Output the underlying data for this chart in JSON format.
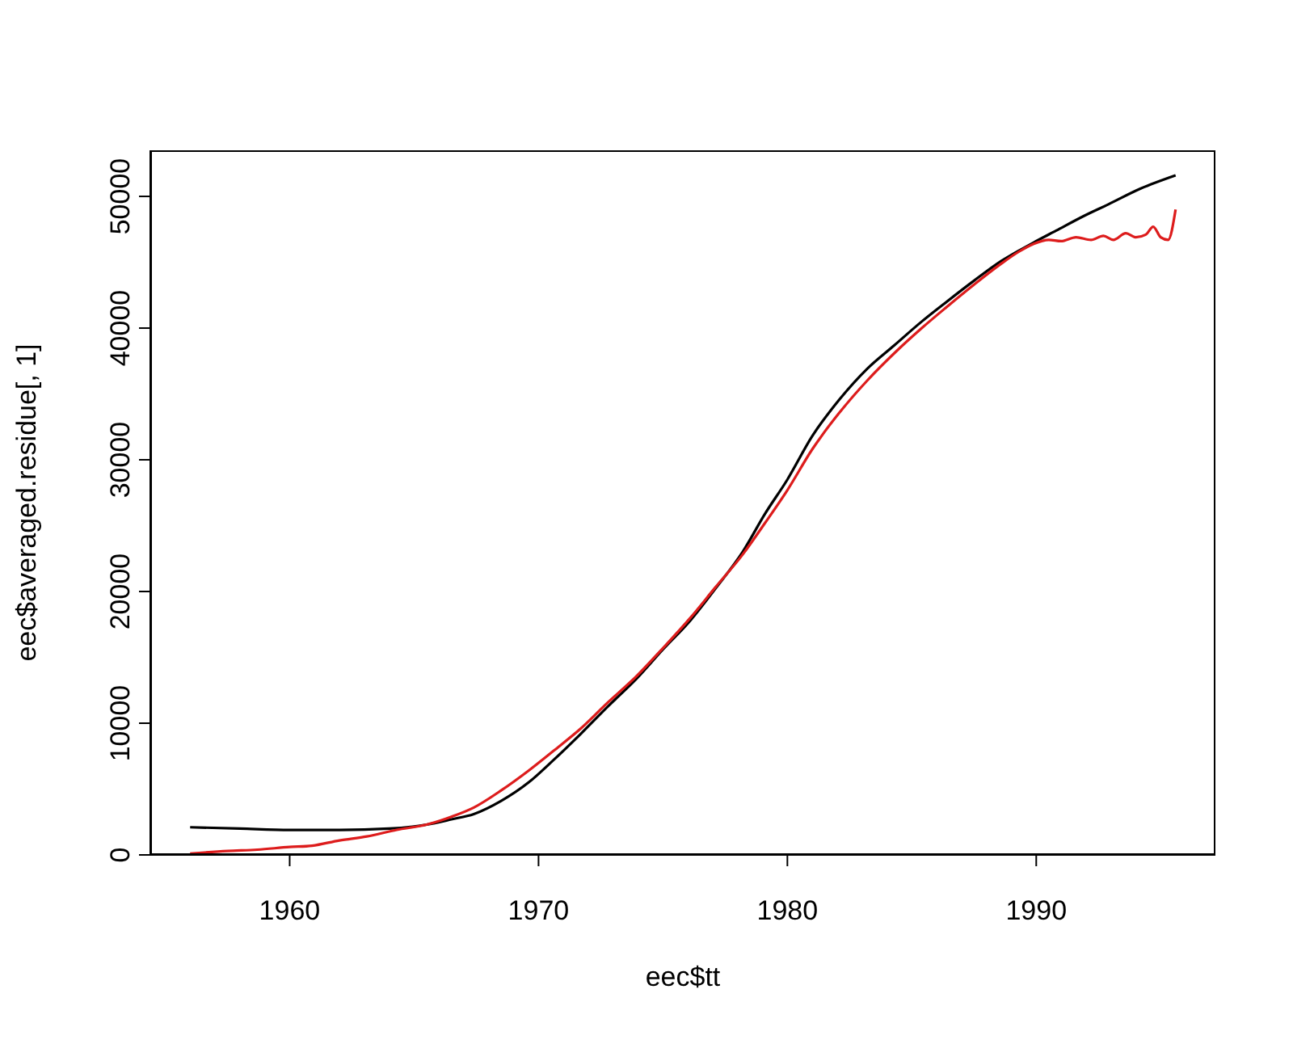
{
  "chart_data": {
    "type": "line",
    "xlabel": "eec$tt",
    "ylabel": "eec$averaged.residue[, 1]",
    "xlim": [
      1954.4,
      1997.2
    ],
    "xticks": [
      1960,
      1970,
      1980,
      1990
    ],
    "ylim": [
      0,
      53500
    ],
    "yticks": [
      0,
      10000,
      20000,
      30000,
      40000,
      50000
    ],
    "marker": "none",
    "line_style": "solid",
    "series": [
      {
        "color": "#000000",
        "x": [
          1956.0,
          1958.0,
          1960.0,
          1962.0,
          1964.0,
          1965.5,
          1966.5,
          1967.4,
          1968.5,
          1969.6,
          1970.6,
          1971.7,
          1972.8,
          1973.9,
          1975.0,
          1976.1,
          1977.1,
          1978.2,
          1979.1,
          1980.0,
          1981.0,
          1982.1,
          1983.2,
          1984.3,
          1985.4,
          1986.4,
          1987.5,
          1988.6,
          1989.9,
          1990.8,
          1991.9,
          1992.9,
          1994.2,
          1995.6
        ],
        "values": [
          2100,
          2000,
          1900,
          1900,
          2000,
          2300,
          2700,
          3100,
          4100,
          5500,
          7200,
          9200,
          11300,
          13300,
          15600,
          17800,
          20200,
          23000,
          25900,
          28500,
          31800,
          34600,
          36900,
          38700,
          40500,
          42000,
          43600,
          45100,
          46500,
          47400,
          48500,
          49400,
          50600,
          51600
        ]
      },
      {
        "color": "#dd1c1c",
        "x": [
          1956.0,
          1957.5,
          1958.7,
          1960.0,
          1960.9,
          1962.0,
          1963.1,
          1964.3,
          1965.5,
          1966.5,
          1967.4,
          1968.5,
          1969.6,
          1970.6,
          1971.7,
          1972.8,
          1973.9,
          1975.0,
          1976.1,
          1977.1,
          1978.2,
          1979.1,
          1980.0,
          1981.0,
          1982.1,
          1983.2,
          1984.3,
          1985.4,
          1986.4,
          1987.5,
          1988.6,
          1989.3,
          1989.9,
          1990.5,
          1991.0,
          1991.6,
          1992.2,
          1992.7,
          1993.1,
          1993.6,
          1994.0,
          1994.4,
          1994.7,
          1995.0,
          1995.3,
          1995.6
        ],
        "values": [
          100,
          300,
          400,
          600,
          700,
          1100,
          1400,
          1900,
          2300,
          2900,
          3600,
          4900,
          6400,
          7900,
          9600,
          11600,
          13500,
          15700,
          18000,
          20300,
          22800,
          25200,
          27700,
          30800,
          33600,
          36000,
          38100,
          40000,
          41600,
          43300,
          44900,
          45800,
          46400,
          46700,
          46600,
          46900,
          46700,
          47000,
          46700,
          47200,
          46900,
          47100,
          47700,
          46900,
          46700,
          49000
        ]
      }
    ]
  }
}
